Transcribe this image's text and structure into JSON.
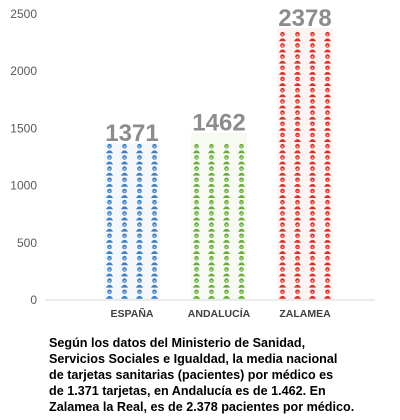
{
  "chart_data": {
    "type": "bar",
    "categories": [
      "ESPAÑA",
      "ANDALUCÍA",
      "ZALAMEA"
    ],
    "values": [
      1371,
      1462,
      2378
    ],
    "value_labels": [
      "1371",
      "1462",
      "2378"
    ],
    "colors": [
      "#3f7fc0",
      "#6aab3a",
      "#d8332a"
    ],
    "value_label_color": "#8c8c8c",
    "title": "",
    "xlabel": "",
    "ylabel": "",
    "ylim": [
      0,
      2500
    ],
    "yticks": [
      0,
      500,
      1000,
      1500,
      2000,
      2500
    ],
    "grid": false,
    "legend": "none",
    "mark_style": "person-icons"
  },
  "caption": {
    "lines": [
      "Según los datos del Ministerio de Sanidad,",
      "Servicios Sociales e Igualdad, la media nacional",
      "de tarjetas sanitarias (pacientes) por médico es",
      "de 1.371 tarjetas, en Andalucía es de 1.462. En",
      "Zalamea la Real, es de 2.378 pacientes por médico."
    ]
  }
}
